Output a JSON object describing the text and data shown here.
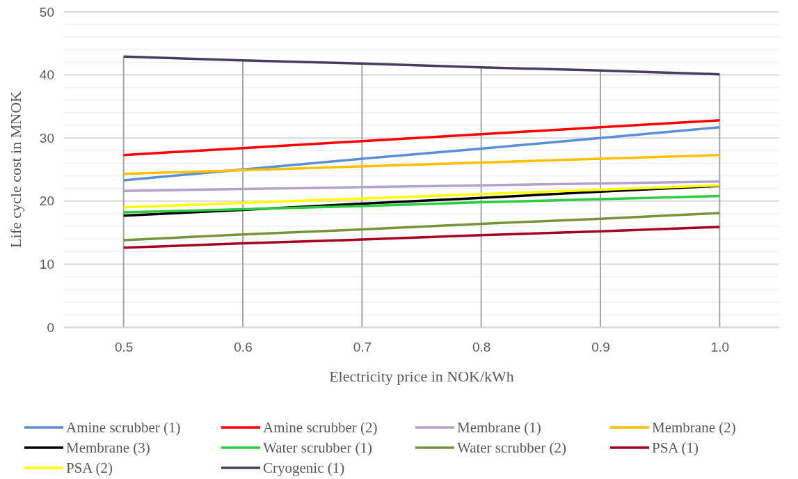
{
  "chart_data": {
    "type": "line",
    "xlabel": "Electricity price in NOK/kWh",
    "ylabel": "Life cycle cost in MNOK",
    "x": [
      0.5,
      0.6,
      0.7,
      0.8,
      0.9,
      1.0
    ],
    "xlim": [
      0.45,
      1.05
    ],
    "xticks": [
      {
        "value": 0.5,
        "label": "0.5"
      },
      {
        "value": 0.6,
        "label": "0.6"
      },
      {
        "value": 0.7,
        "label": "0.7"
      },
      {
        "value": 0.8,
        "label": "0.8"
      },
      {
        "value": 0.9,
        "label": "0.9"
      },
      {
        "value": 1.0,
        "label": "1.0"
      }
    ],
    "ylim": [
      0,
      50
    ],
    "yticks": [
      0,
      {
        "value": 2,
        "label": null
      },
      {
        "value": 4,
        "label": null
      },
      {
        "value": 6,
        "label": null
      },
      {
        "value": 8,
        "label": null
      },
      10,
      {
        "value": 12,
        "label": null
      },
      {
        "value": 14,
        "label": null
      },
      {
        "value": 16,
        "label": null
      },
      {
        "value": 18,
        "label": null
      },
      20,
      {
        "value": 22,
        "label": null
      },
      {
        "value": 24,
        "label": null
      },
      {
        "value": 26,
        "label": null
      },
      {
        "value": 28,
        "label": null
      },
      30,
      {
        "value": 32,
        "label": null
      },
      {
        "value": 34,
        "label": null
      },
      {
        "value": 36,
        "label": null
      },
      {
        "value": 38,
        "label": null
      },
      40,
      {
        "value": 42,
        "label": null
      },
      {
        "value": 44,
        "label": null
      },
      {
        "value": 46,
        "label": null
      },
      {
        "value": 48,
        "label": null
      },
      50
    ],
    "grid": true,
    "legend": "bottom",
    "marker": "none",
    "line_style": "solid",
    "series": [
      {
        "name": "Amine scrubber (1)",
        "color": "#5b8fd6",
        "values": [
          23.3,
          25.0,
          26.7,
          28.3,
          30.0,
          31.7
        ]
      },
      {
        "name": "Amine scrubber (2)",
        "color": "#ff0000",
        "values": [
          27.3,
          28.4,
          29.5,
          30.6,
          31.7,
          32.8
        ]
      },
      {
        "name": "Membrane (1)",
        "color": "#b4a2cc",
        "values": [
          21.6,
          21.9,
          22.2,
          22.5,
          22.8,
          23.1
        ]
      },
      {
        "name": "Membrane (2)",
        "color": "#ffc000",
        "values": [
          24.3,
          24.9,
          25.5,
          26.1,
          26.7,
          27.3
        ]
      },
      {
        "name": "Membrane (3)",
        "color": "#000000",
        "values": [
          17.7,
          18.6,
          19.6,
          20.5,
          21.5,
          22.4
        ]
      },
      {
        "name": "Water scrubber (1)",
        "color": "#2ecc40",
        "values": [
          18.2,
          18.7,
          19.2,
          19.8,
          20.3,
          20.8
        ]
      },
      {
        "name": "Water scrubber (2)",
        "color": "#77933c",
        "values": [
          13.8,
          14.7,
          15.5,
          16.4,
          17.2,
          18.1
        ]
      },
      {
        "name": "PSA (1)",
        "color": "#a50021",
        "values": [
          12.6,
          13.3,
          13.9,
          14.6,
          15.2,
          15.9
        ]
      },
      {
        "name": "PSA (2)",
        "color": "#ffff00",
        "values": [
          19.0,
          19.7,
          20.4,
          21.1,
          21.8,
          22.5
        ]
      },
      {
        "name": "Cryogenic (1)",
        "color": "#4b3b63",
        "values": [
          42.9,
          42.3,
          41.8,
          41.2,
          40.7,
          40.1
        ]
      }
    ]
  }
}
